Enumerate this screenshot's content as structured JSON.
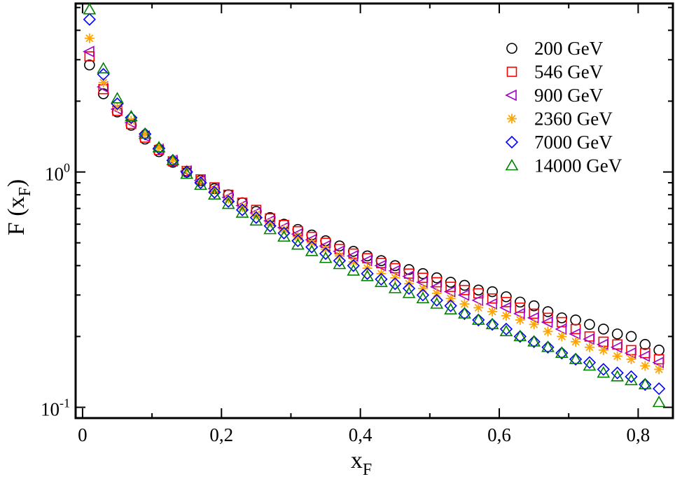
{
  "chart_data": {
    "type": "scatter",
    "xlabel": "x_F",
    "ylabel": "F (x_F)",
    "xlim": [
      -0.01,
      0.85
    ],
    "ylim": [
      0.09,
      5.2
    ],
    "yscale": "log",
    "grid": false,
    "legend_position": "top-right",
    "x_ticks": [
      {
        "value": 0,
        "label": "0"
      },
      {
        "value": 0.2,
        "label": "0,2"
      },
      {
        "value": 0.4,
        "label": "0,4"
      },
      {
        "value": 0.6,
        "label": "0,6"
      },
      {
        "value": 0.8,
        "label": "0,8"
      }
    ],
    "y_ticks": [
      {
        "value": 0.1,
        "base": "10",
        "exp": "-1"
      },
      {
        "value": 1,
        "base": "10",
        "exp": "0"
      }
    ],
    "x": [
      0.01,
      0.03,
      0.05,
      0.07,
      0.09,
      0.11,
      0.13,
      0.15,
      0.17,
      0.19,
      0.21,
      0.23,
      0.25,
      0.27,
      0.29,
      0.31,
      0.33,
      0.35,
      0.37,
      0.39,
      0.41,
      0.43,
      0.45,
      0.47,
      0.49,
      0.51,
      0.53,
      0.55,
      0.57,
      0.59,
      0.61,
      0.63,
      0.65,
      0.67,
      0.69,
      0.71,
      0.73,
      0.75,
      0.77,
      0.79,
      0.81,
      0.83
    ],
    "series": [
      {
        "name": "200 GeV",
        "marker": "circle",
        "color": "#000000",
        "values": [
          2.85,
          2.15,
          1.8,
          1.58,
          1.38,
          1.22,
          1.1,
          1.0,
          0.92,
          0.85,
          0.8,
          0.74,
          0.68,
          0.64,
          0.6,
          0.57,
          0.54,
          0.51,
          0.485,
          0.46,
          0.44,
          0.42,
          0.4,
          0.385,
          0.37,
          0.355,
          0.34,
          0.33,
          0.315,
          0.31,
          0.295,
          0.28,
          0.27,
          0.255,
          0.24,
          0.235,
          0.225,
          0.215,
          0.205,
          0.2,
          0.185,
          0.175
        ]
      },
      {
        "name": "546 GeV",
        "marker": "square",
        "color": "#ff0000",
        "values": [
          3.1,
          2.25,
          1.82,
          1.6,
          1.4,
          1.24,
          1.11,
          1.01,
          0.93,
          0.86,
          0.8,
          0.74,
          0.69,
          0.635,
          0.595,
          0.56,
          0.53,
          0.5,
          0.47,
          0.45,
          0.43,
          0.41,
          0.39,
          0.37,
          0.355,
          0.34,
          0.325,
          0.315,
          0.305,
          0.29,
          0.28,
          0.265,
          0.25,
          0.24,
          0.23,
          0.215,
          0.2,
          0.19,
          0.185,
          0.175,
          0.17,
          0.16
        ]
      },
      {
        "name": "900 GeV",
        "marker": "triangle-left",
        "color": "#a000c8",
        "values": [
          3.25,
          2.3,
          1.85,
          1.62,
          1.42,
          1.25,
          1.12,
          1.01,
          0.92,
          0.85,
          0.78,
          0.72,
          0.67,
          0.62,
          0.58,
          0.545,
          0.515,
          0.485,
          0.46,
          0.44,
          0.42,
          0.4,
          0.38,
          0.36,
          0.34,
          0.325,
          0.31,
          0.3,
          0.285,
          0.275,
          0.265,
          0.25,
          0.24,
          0.23,
          0.215,
          0.205,
          0.195,
          0.185,
          0.18,
          0.17,
          0.165,
          0.155
        ]
      },
      {
        "name": "2360 GeV",
        "marker": "asterisk",
        "color": "#ffa500",
        "values": [
          3.7,
          2.4,
          1.88,
          1.65,
          1.45,
          1.27,
          1.13,
          1.02,
          0.92,
          0.84,
          0.77,
          0.71,
          0.66,
          0.61,
          0.57,
          0.53,
          0.5,
          0.47,
          0.44,
          0.415,
          0.39,
          0.37,
          0.355,
          0.335,
          0.32,
          0.305,
          0.29,
          0.275,
          0.265,
          0.255,
          0.245,
          0.235,
          0.225,
          0.21,
          0.2,
          0.19,
          0.18,
          0.175,
          0.165,
          0.16,
          0.15,
          0.145
        ]
      },
      {
        "name": "7000 GeV",
        "marker": "diamond",
        "color": "#0000ff",
        "values": [
          4.45,
          2.6,
          1.95,
          1.7,
          1.45,
          1.26,
          1.12,
          1.0,
          0.9,
          0.82,
          0.75,
          0.69,
          0.64,
          0.59,
          0.55,
          0.51,
          0.48,
          0.45,
          0.42,
          0.4,
          0.37,
          0.35,
          0.335,
          0.32,
          0.3,
          0.285,
          0.27,
          0.25,
          0.235,
          0.225,
          0.215,
          0.2,
          0.19,
          0.18,
          0.17,
          0.16,
          0.155,
          0.145,
          0.14,
          0.135,
          0.125,
          0.12
        ]
      },
      {
        "name": "14000 GeV",
        "marker": "triangle-up",
        "color": "#008000",
        "values": [
          4.9,
          2.75,
          2.05,
          1.72,
          1.45,
          1.27,
          1.12,
          0.98,
          0.88,
          0.8,
          0.73,
          0.67,
          0.62,
          0.57,
          0.53,
          0.49,
          0.46,
          0.43,
          0.405,
          0.38,
          0.36,
          0.34,
          0.32,
          0.305,
          0.29,
          0.275,
          0.26,
          0.25,
          0.235,
          0.225,
          0.21,
          0.2,
          0.19,
          0.18,
          0.17,
          0.16,
          0.15,
          0.14,
          0.135,
          0.13,
          0.125,
          0.105
        ]
      }
    ]
  }
}
